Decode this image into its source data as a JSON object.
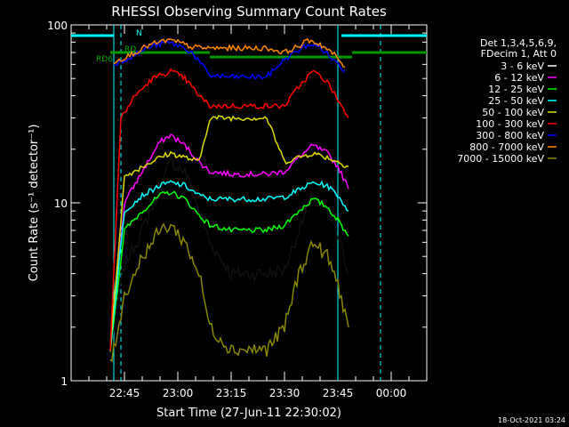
{
  "chart_data": {
    "type": "line",
    "title": "RHESSI Observing Summary Count Rates",
    "xlabel": "Start Time (27-Jun-11 22:30:02)",
    "ylabel": "Count Rate (s⁻¹ detector⁻¹)",
    "yscale": "log",
    "ylim": [
      1,
      100
    ],
    "xlim": [
      "22:30",
      "00:10"
    ],
    "y_ticks": [
      "1",
      "10",
      "100"
    ],
    "x_ticks": [
      "22:45",
      "23:00",
      "23:15",
      "23:30",
      "23:45",
      "00:00"
    ],
    "legend_header": [
      "Det 1,3,4,5,6,9,",
      "FDecim 1, Att 0"
    ],
    "legend_placement": "right",
    "series": [
      {
        "name": "3 - 6 keV",
        "color": "#000000",
        "points": [
          [
            "22:41",
            1.5
          ],
          [
            "22:45",
            4.5
          ],
          [
            "22:50",
            7
          ],
          [
            "22:55",
            12
          ],
          [
            "22:58",
            17
          ],
          [
            "23:02",
            15
          ],
          [
            "23:06",
            9
          ],
          [
            "23:09",
            6
          ],
          [
            "23:15",
            4
          ],
          [
            "23:20",
            4
          ],
          [
            "23:25",
            4
          ],
          [
            "23:30",
            4.2
          ],
          [
            "23:34",
            7
          ],
          [
            "23:38",
            11
          ],
          [
            "23:42",
            9
          ],
          [
            "23:45",
            6.5
          ],
          [
            "23:48",
            4
          ]
        ]
      },
      {
        "name": "6 - 12 keV",
        "color": "#ff00ff",
        "points": [
          [
            "22:41",
            1.5
          ],
          [
            "22:45",
            10
          ],
          [
            "22:50",
            15
          ],
          [
            "22:55",
            22
          ],
          [
            "22:58",
            24
          ],
          [
            "23:02",
            21
          ],
          [
            "23:06",
            17
          ],
          [
            "23:09",
            15
          ],
          [
            "23:15",
            14.5
          ],
          [
            "23:20",
            14.5
          ],
          [
            "23:25",
            14.5
          ],
          [
            "23:30",
            15
          ],
          [
            "23:34",
            18
          ],
          [
            "23:38",
            21
          ],
          [
            "23:42",
            19
          ],
          [
            "23:45",
            16
          ],
          [
            "23:48",
            12
          ]
        ]
      },
      {
        "name": "12 - 25 keV",
        "color": "#00ff00",
        "points": [
          [
            "22:41",
            1.5
          ],
          [
            "22:45",
            7
          ],
          [
            "22:50",
            9
          ],
          [
            "22:55",
            11
          ],
          [
            "22:58",
            11.5
          ],
          [
            "23:02",
            10.5
          ],
          [
            "23:06",
            8.5
          ],
          [
            "23:09",
            7.5
          ],
          [
            "23:15",
            7
          ],
          [
            "23:20",
            7
          ],
          [
            "23:25",
            7
          ],
          [
            "23:30",
            7.5
          ],
          [
            "23:34",
            9
          ],
          [
            "23:38",
            10.5
          ],
          [
            "23:42",
            9.5
          ],
          [
            "23:45",
            8
          ],
          [
            "23:48",
            6.5
          ]
        ]
      },
      {
        "name": "25 - 50 keV",
        "color": "#00ffff",
        "points": [
          [
            "22:41",
            1.5
          ],
          [
            "22:45",
            9
          ],
          [
            "22:50",
            11
          ],
          [
            "22:55",
            12.5
          ],
          [
            "22:58",
            13
          ],
          [
            "23:02",
            12.5
          ],
          [
            "23:06",
            11
          ],
          [
            "23:09",
            10.5
          ],
          [
            "23:15",
            10.5
          ],
          [
            "23:20",
            10.5
          ],
          [
            "23:25",
            10.5
          ],
          [
            "23:30",
            10.8
          ],
          [
            "23:34",
            11.8
          ],
          [
            "23:38",
            13
          ],
          [
            "23:42",
            12.5
          ],
          [
            "23:45",
            11
          ],
          [
            "23:48",
            9
          ]
        ]
      },
      {
        "name": "50 - 100 keV",
        "color": "#dddd00",
        "points": [
          [
            "22:41",
            1.5
          ],
          [
            "22:45",
            14
          ],
          [
            "22:50",
            16
          ],
          [
            "22:55",
            18
          ],
          [
            "22:58",
            19
          ],
          [
            "23:02",
            18
          ],
          [
            "23:06",
            17
          ],
          [
            "23:09",
            30
          ],
          [
            "23:15",
            30
          ],
          [
            "23:20",
            30
          ],
          [
            "23:25",
            30
          ],
          [
            "23:30",
            17
          ],
          [
            "23:34",
            18
          ],
          [
            "23:38",
            19
          ],
          [
            "23:42",
            18
          ],
          [
            "23:45",
            17
          ],
          [
            "23:48",
            16
          ]
        ]
      },
      {
        "name": "100 - 300 keV",
        "color": "#ff0000",
        "points": [
          [
            "22:41",
            1.5
          ],
          [
            "22:44",
            30
          ],
          [
            "22:48",
            40
          ],
          [
            "22:53",
            50
          ],
          [
            "22:58",
            55
          ],
          [
            "23:02",
            50
          ],
          [
            "23:06",
            40
          ],
          [
            "23:09",
            35
          ],
          [
            "23:15",
            35
          ],
          [
            "23:20",
            35
          ],
          [
            "23:25",
            35
          ],
          [
            "23:30",
            35
          ],
          [
            "23:34",
            45
          ],
          [
            "23:38",
            55
          ],
          [
            "23:42",
            48
          ],
          [
            "23:45",
            38
          ],
          [
            "23:48",
            30
          ]
        ]
      },
      {
        "name": "300 - 800 keV",
        "color": "#0000ff",
        "points": [
          [
            "22:42",
            60
          ],
          [
            "22:46",
            65
          ],
          [
            "22:52",
            75
          ],
          [
            "22:57",
            80
          ],
          [
            "23:00",
            77
          ],
          [
            "23:04",
            70
          ],
          [
            "23:09",
            52
          ],
          [
            "23:15",
            51
          ],
          [
            "23:20",
            51
          ],
          [
            "23:25",
            51
          ],
          [
            "23:30",
            64
          ],
          [
            "23:34",
            72
          ],
          [
            "23:37",
            78
          ],
          [
            "23:40",
            75
          ],
          [
            "23:44",
            63
          ],
          [
            "23:47",
            55
          ]
        ]
      },
      {
        "name": "800 - 7000 keV",
        "color": "#ff8800",
        "points": [
          [
            "22:42",
            62
          ],
          [
            "22:46",
            67
          ],
          [
            "22:52",
            77
          ],
          [
            "22:57",
            82
          ],
          [
            "23:00",
            80
          ],
          [
            "23:04",
            75
          ],
          [
            "23:09",
            74
          ],
          [
            "23:15",
            74
          ],
          [
            "23:20",
            74
          ],
          [
            "23:25",
            74
          ],
          [
            "23:30",
            70
          ],
          [
            "23:34",
            76
          ],
          [
            "23:37",
            82
          ],
          [
            "23:40",
            78
          ],
          [
            "23:44",
            68
          ],
          [
            "23:47",
            58
          ]
        ]
      },
      {
        "name": "7000 - 15000 keV",
        "color": "#888800",
        "points": [
          [
            "22:41",
            1.2
          ],
          [
            "22:45",
            3
          ],
          [
            "22:50",
            5
          ],
          [
            "22:55",
            7
          ],
          [
            "22:58",
            7.5
          ],
          [
            "23:02",
            6
          ],
          [
            "23:06",
            4
          ],
          [
            "23:09",
            2
          ],
          [
            "23:15",
            1.5
          ],
          [
            "23:20",
            1.5
          ],
          [
            "23:25",
            1.5
          ],
          [
            "23:30",
            2
          ],
          [
            "23:34",
            4
          ],
          [
            "23:38",
            6
          ],
          [
            "23:42",
            5
          ],
          [
            "23:45",
            3.5
          ],
          [
            "23:48",
            2
          ]
        ]
      }
    ],
    "annotations": [
      {
        "text": "RD6",
        "color": "#00aa00"
      },
      {
        "text": "RD",
        "color": "#00aa00"
      },
      {
        "text": "N",
        "color": "#00ffff"
      }
    ],
    "markers": {
      "night_bars": [
        [
          "22:30",
          "22:42"
        ],
        [
          "23:46",
          "00:10"
        ]
      ],
      "night_bar_color": "#00ffff",
      "rd6_segments": [
        [
          "22:41",
          "23:09",
          70
        ],
        [
          "23:09",
          "23:30",
          66
        ],
        [
          "23:30",
          "23:49",
          66
        ],
        [
          "23:49",
          "00:10",
          70
        ]
      ],
      "rd6_color": "#009900",
      "cyan_dashed_x": [
        "22:44",
        "23:57"
      ],
      "cyan_solid_x": [
        "22:42",
        "23:45"
      ]
    }
  },
  "footer": {
    "timestamp": "18-Oct-2021 03:24"
  }
}
